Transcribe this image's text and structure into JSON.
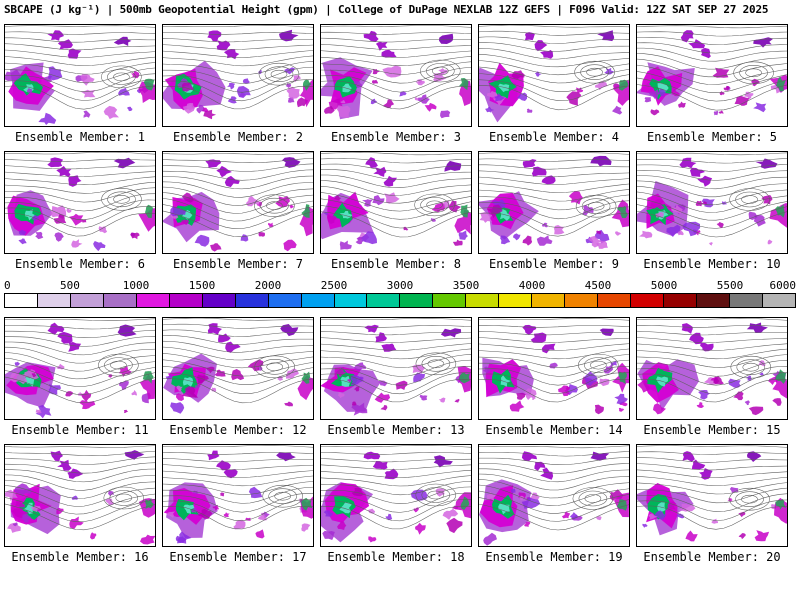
{
  "header": {
    "title": "SBCAPE (J kg⁻¹) | 500mb Geopotential Height (gpm) | College of DuPage NEXLAB 12Z GEFS | F096 Valid: 12Z SAT SEP 27 2025"
  },
  "panels": [
    {
      "label": "Ensemble Member: 1"
    },
    {
      "label": "Ensemble Member: 2"
    },
    {
      "label": "Ensemble Member: 3"
    },
    {
      "label": "Ensemble Member: 4"
    },
    {
      "label": "Ensemble Member: 5"
    },
    {
      "label": "Ensemble Member: 6"
    },
    {
      "label": "Ensemble Member: 7"
    },
    {
      "label": "Ensemble Member: 8"
    },
    {
      "label": "Ensemble Member: 9"
    },
    {
      "label": "Ensemble Member: 10"
    },
    {
      "label": "Ensemble Member: 11"
    },
    {
      "label": "Ensemble Member: 12"
    },
    {
      "label": "Ensemble Member: 13"
    },
    {
      "label": "Ensemble Member: 14"
    },
    {
      "label": "Ensemble Member: 15"
    },
    {
      "label": "Ensemble Member: 16"
    },
    {
      "label": "Ensemble Member: 17"
    },
    {
      "label": "Ensemble Member: 18"
    },
    {
      "label": "Ensemble Member: 19"
    },
    {
      "label": "Ensemble Member: 20"
    }
  ],
  "colorbar": {
    "min": 0,
    "max": 6000,
    "segment_interval": 250,
    "ticks": [
      "0",
      "500",
      "1000",
      "1500",
      "2000",
      "2500",
      "3000",
      "3500",
      "4000",
      "4500",
      "5000",
      "5500",
      "6000"
    ],
    "segment_colors": [
      "#ffffff",
      "#dfd0ea",
      "#c3a0d8",
      "#a86fc6",
      "#e018e0",
      "#b400c8",
      "#6400c8",
      "#2832dc",
      "#1e6ef0",
      "#00a0f0",
      "#00c8dc",
      "#00c896",
      "#00b450",
      "#64c800",
      "#c8dc00",
      "#f0e600",
      "#f0b400",
      "#f08200",
      "#e64600",
      "#d20000",
      "#960000",
      "#5f1010",
      "#787878",
      "#b4b4b4"
    ]
  },
  "map_style": {
    "contour_color": "#5f5f5f",
    "border_color": "#000000",
    "cape_main": "#d400d4",
    "cape_halo": "#a43ad2",
    "cape_core_green": "#00b45a",
    "cape_core_cyan": "#55e0c0",
    "cape_scatter": [
      "#c800c8",
      "#a52ad2",
      "#8a2be2",
      "#d465e0",
      "#b400b4"
    ]
  }
}
